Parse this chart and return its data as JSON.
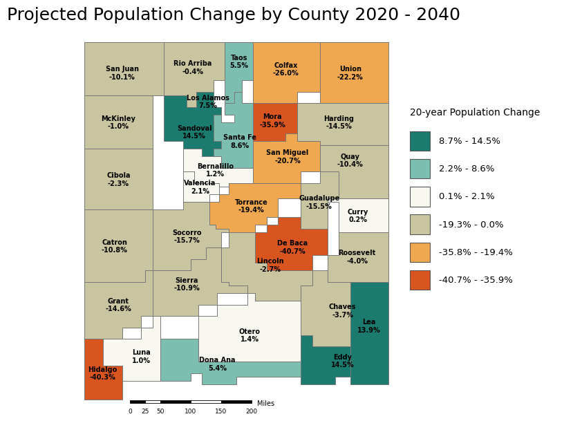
{
  "title": "Projected Population Change by County 2020 - 2040",
  "legend_title": "20-year Population Change",
  "legend_entries": [
    {
      "label": "8.7% - 14.5%",
      "color": "#1a7b6e"
    },
    {
      "label": "2.2% - 8.6%",
      "color": "#7cbfb0"
    },
    {
      "label": "0.1% - 2.1%",
      "color": "#f8f8f0"
    },
    {
      "label": "-19.3% - 0.0%",
      "color": "#c8c5a0"
    },
    {
      "label": "-35.8% - -19.4%",
      "color": "#f0a850"
    },
    {
      "label": "-40.7% - -35.9%",
      "color": "#d95520"
    }
  ],
  "counties": {
    "San Juan": {
      "color": "#c8c5a0",
      "label": "San Juan\n-10.1%"
    },
    "Rio Arriba": {
      "color": "#c8c5a0",
      "label": "Rio Arriba\n-0.4%"
    },
    "Taos": {
      "color": "#7cbfb0",
      "label": "Taos\n5.5%"
    },
    "Colfax": {
      "color": "#f0a850",
      "label": "Colfax\n-26.0%"
    },
    "Union": {
      "color": "#f0a850",
      "label": "Union\n-22.2%"
    },
    "McKinley": {
      "color": "#c8c5a0",
      "label": "McKinley\n-1.0%"
    },
    "Los Alamos": {
      "color": "#7cbfb0",
      "label": "Los Alamos\n7.5%"
    },
    "Mora": {
      "color": "#d95520",
      "label": "Mora\n-35.9%"
    },
    "Harding": {
      "color": "#c8c5a0",
      "label": "Harding\n-14.5%"
    },
    "Sandoval": {
      "color": "#1a7b6e",
      "label": "Sandoval\n14.5%"
    },
    "Santa Fe": {
      "color": "#7cbfb0",
      "label": "Santa Fe\n8.6%"
    },
    "San Miguel": {
      "color": "#f0a850",
      "label": "San Miguel\n-20.7%"
    },
    "Cibola": {
      "color": "#c8c5a0",
      "label": "Cibola\n-2.3%"
    },
    "Bernalillo": {
      "color": "#f8f8f0",
      "label": "Bernalillo\n1.2%"
    },
    "Valencia": {
      "color": "#f8f8f0",
      "label": "Valencia\n2.1%"
    },
    "Torrance": {
      "color": "#f0a850",
      "label": "Torrance\n-19.4%"
    },
    "Guadalupe": {
      "color": "#c8c5a0",
      "label": "Guadalupe\n-15.5%"
    },
    "Quay": {
      "color": "#c8c5a0",
      "label": "Quay\n-10.4%"
    },
    "Curry": {
      "color": "#f8f8f0",
      "label": "Curry\n0.2%"
    },
    "De Baca": {
      "color": "#d95520",
      "label": "De Baca\n-40.7%"
    },
    "Roosevelt": {
      "color": "#c8c5a0",
      "label": "Roosevelt\n-4.0%"
    },
    "Catron": {
      "color": "#c8c5a0",
      "label": "Catron\n-10.8%"
    },
    "Socorro": {
      "color": "#c8c5a0",
      "label": "Socorro\n-15.7%"
    },
    "Lincoln": {
      "color": "#c8c5a0",
      "label": "Lincoln\n-2.7%"
    },
    "Chaves": {
      "color": "#c8c5a0",
      "label": "Chaves\n-3.7%"
    },
    "Grant": {
      "color": "#c8c5a0",
      "label": "Grant\n-14.6%"
    },
    "Sierra": {
      "color": "#c8c5a0",
      "label": "Sierra\n-10.9%"
    },
    "Otero": {
      "color": "#f8f8f0",
      "label": "Otero\n1.4%"
    },
    "Eddy": {
      "color": "#1a7b6e",
      "label": "Eddy\n14.5%"
    },
    "Lea": {
      "color": "#1a7b6e",
      "label": "Lea\n13.9%"
    },
    "Dona Ana": {
      "color": "#7cbfb0",
      "label": "Dona Ana\n5.4%"
    },
    "Luna": {
      "color": "#f8f8f0",
      "label": "Luna\n1.0%"
    },
    "Hidalgo": {
      "color": "#d95520",
      "label": "Hidalgo\n-40.3%"
    }
  },
  "background_color": "#ffffff",
  "border_color": "#777777",
  "font_size_county": 7.0,
  "font_size_title": 18,
  "font_size_legend": 10,
  "scalebar_labels": [
    "0",
    "25",
    "50",
    "100",
    "150",
    "200"
  ],
  "scalebar_unit": "Miles"
}
